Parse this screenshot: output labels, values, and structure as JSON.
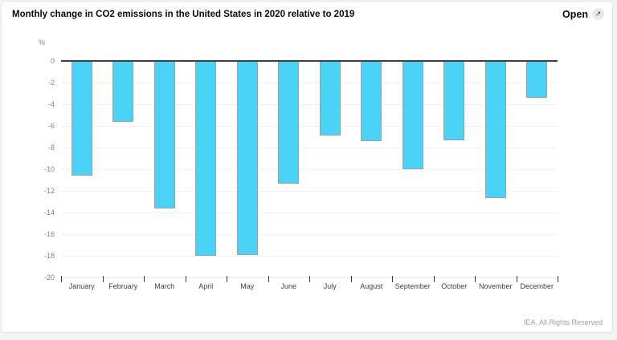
{
  "header": {
    "title": "Monthly change in CO2 emissions in the United States in 2020 relative to 2019",
    "open_label": "Open",
    "open_icon": "↗"
  },
  "chart_data": {
    "type": "bar",
    "title": "Monthly change in CO2 emissions in the United States in 2020 relative to 2019",
    "unit": "%",
    "categories": [
      "January",
      "February",
      "March",
      "April",
      "May",
      "June",
      "July",
      "August",
      "September",
      "October",
      "November",
      "December"
    ],
    "values": [
      -10.6,
      -5.6,
      -13.6,
      -18.0,
      -17.9,
      -11.3,
      -6.9,
      -7.4,
      -10.0,
      -7.3,
      -12.7,
      -3.4
    ],
    "ylim": [
      -20,
      0
    ],
    "yticks": [
      0,
      -2,
      -4,
      -6,
      -8,
      -10,
      -12,
      -14,
      -16,
      -18,
      -20
    ],
    "xlabel": "",
    "ylabel": "%",
    "grid": true,
    "legend_position": "none",
    "bar_color": "#4ad2f7",
    "bar_border_color": "#9ba1a6",
    "zero_line_color": "#3f3f3f",
    "gridline_color": "#f1f1f3"
  },
  "footer": {
    "copyright": "IEA. All Rights Reserved"
  }
}
